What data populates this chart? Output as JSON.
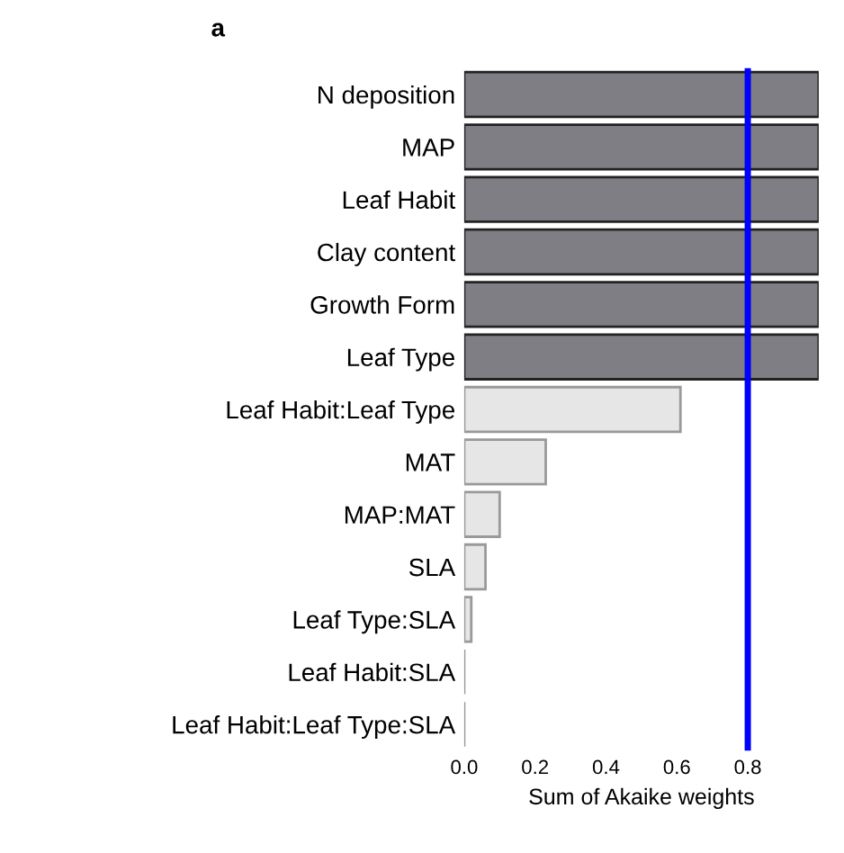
{
  "chart_data": {
    "type": "bar",
    "orientation": "horizontal",
    "xlabel": "Sum of Akaike weights",
    "annotations": [
      "a"
    ],
    "categories": [
      "N deposition",
      "MAP",
      "Leaf Habit",
      "Clay content",
      "Growth Form",
      "Leaf Type",
      "Leaf Habit:Leaf Type",
      "MAT",
      "MAP:MAT",
      "SLA",
      "Leaf Type:SLA",
      "Leaf Habit:SLA",
      "Leaf Habit:Leaf Type:SLA"
    ],
    "values": [
      1,
      1,
      1,
      1,
      1,
      1,
      0.61,
      0.23,
      0.1,
      0.06,
      0.02,
      0,
      0
    ],
    "colors": [
      "#7f7e85",
      "#7f7e85",
      "#7f7e85",
      "#7f7e85",
      "#7f7e85",
      "#7f7e85",
      "#e6e6e6",
      "#e6e6e6",
      "#e6e6e6",
      "#e6e6e6",
      "#e6e6e6",
      "#999999",
      "#999999"
    ],
    "xlim": [
      0,
      1.0
    ],
    "xticks": [
      {
        "value": 0,
        "label": "0.0"
      },
      0.2,
      0.4,
      0.6,
      0.8
    ],
    "ref_lines": [
      {
        "axis": "x",
        "value": 0.8,
        "color": "#0000ff"
      }
    ],
    "grid": false,
    "legend": false
  }
}
